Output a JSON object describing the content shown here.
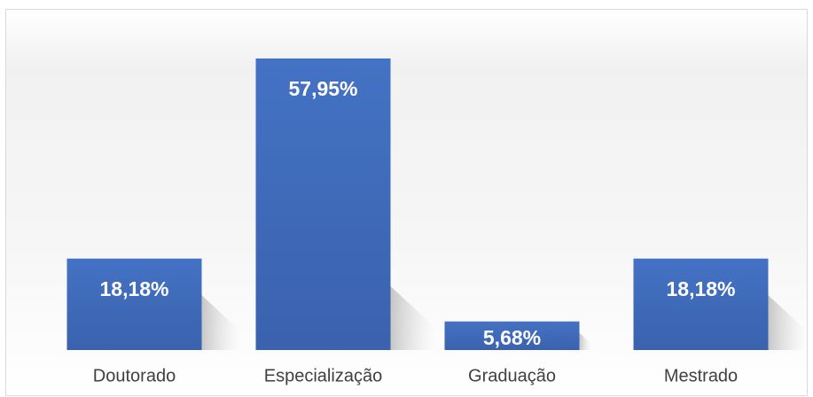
{
  "chart_data": {
    "type": "bar",
    "categories": [
      "Doutorado",
      "Especialização",
      "Graduação",
      "Mestrado"
    ],
    "values": [
      18.18,
      57.95,
      5.68,
      18.18
    ],
    "value_labels": [
      "18,18%",
      "57,95%",
      "5,68%",
      "18,18%"
    ],
    "color": "#4472c4"
  }
}
